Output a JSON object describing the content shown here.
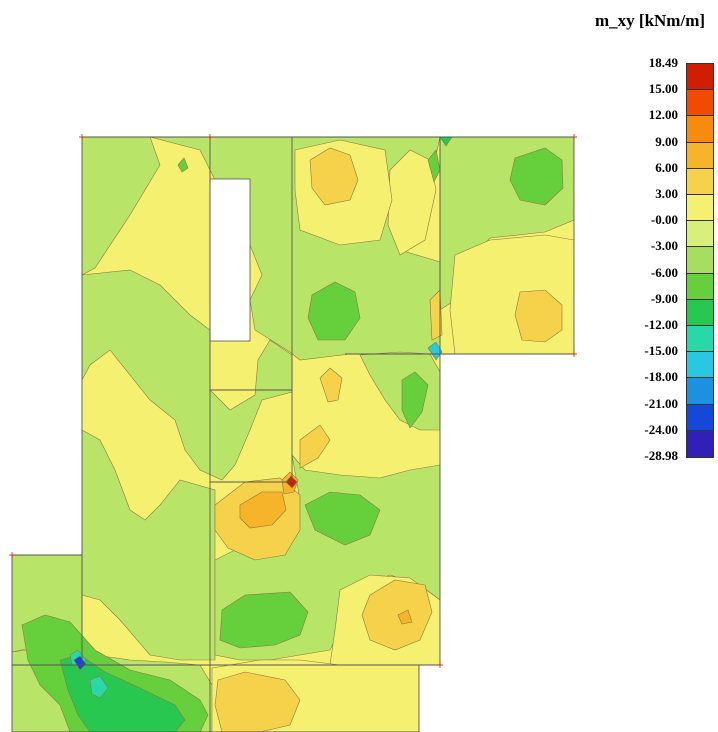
{
  "legend": {
    "title": "m_xy [kNm/m]",
    "ticks": [
      "18.49",
      "15.00",
      "12.00",
      "9.00",
      "6.00",
      "3.00",
      "-0.00",
      "-3.00",
      "-6.00",
      "-9.00",
      "-12.00",
      "-15.00",
      "-18.00",
      "-21.00",
      "-24.00",
      "-28.98"
    ],
    "colors": [
      "#d21e00",
      "#f24a00",
      "#f98a10",
      "#f5b42a",
      "#f5d24a",
      "#f5f070",
      "#d8f07a",
      "#a8de60",
      "#66cf3c",
      "#28c850",
      "#28d8a8",
      "#28c8e0",
      "#1e90e0",
      "#1448d8",
      "#3020b8"
    ]
  },
  "colors": {
    "base_yellow": "#f5f070",
    "light_green": "#b8e468",
    "mid_green": "#66cf3c",
    "dark_green": "#28c850",
    "orange": "#f5d24a",
    "deep_orange": "#f5b42a",
    "red": "#d21e00",
    "cyan": "#28d8a8",
    "blue": "#1448d8",
    "edge": "#8a7a40",
    "slab_line": "#555555"
  }
}
